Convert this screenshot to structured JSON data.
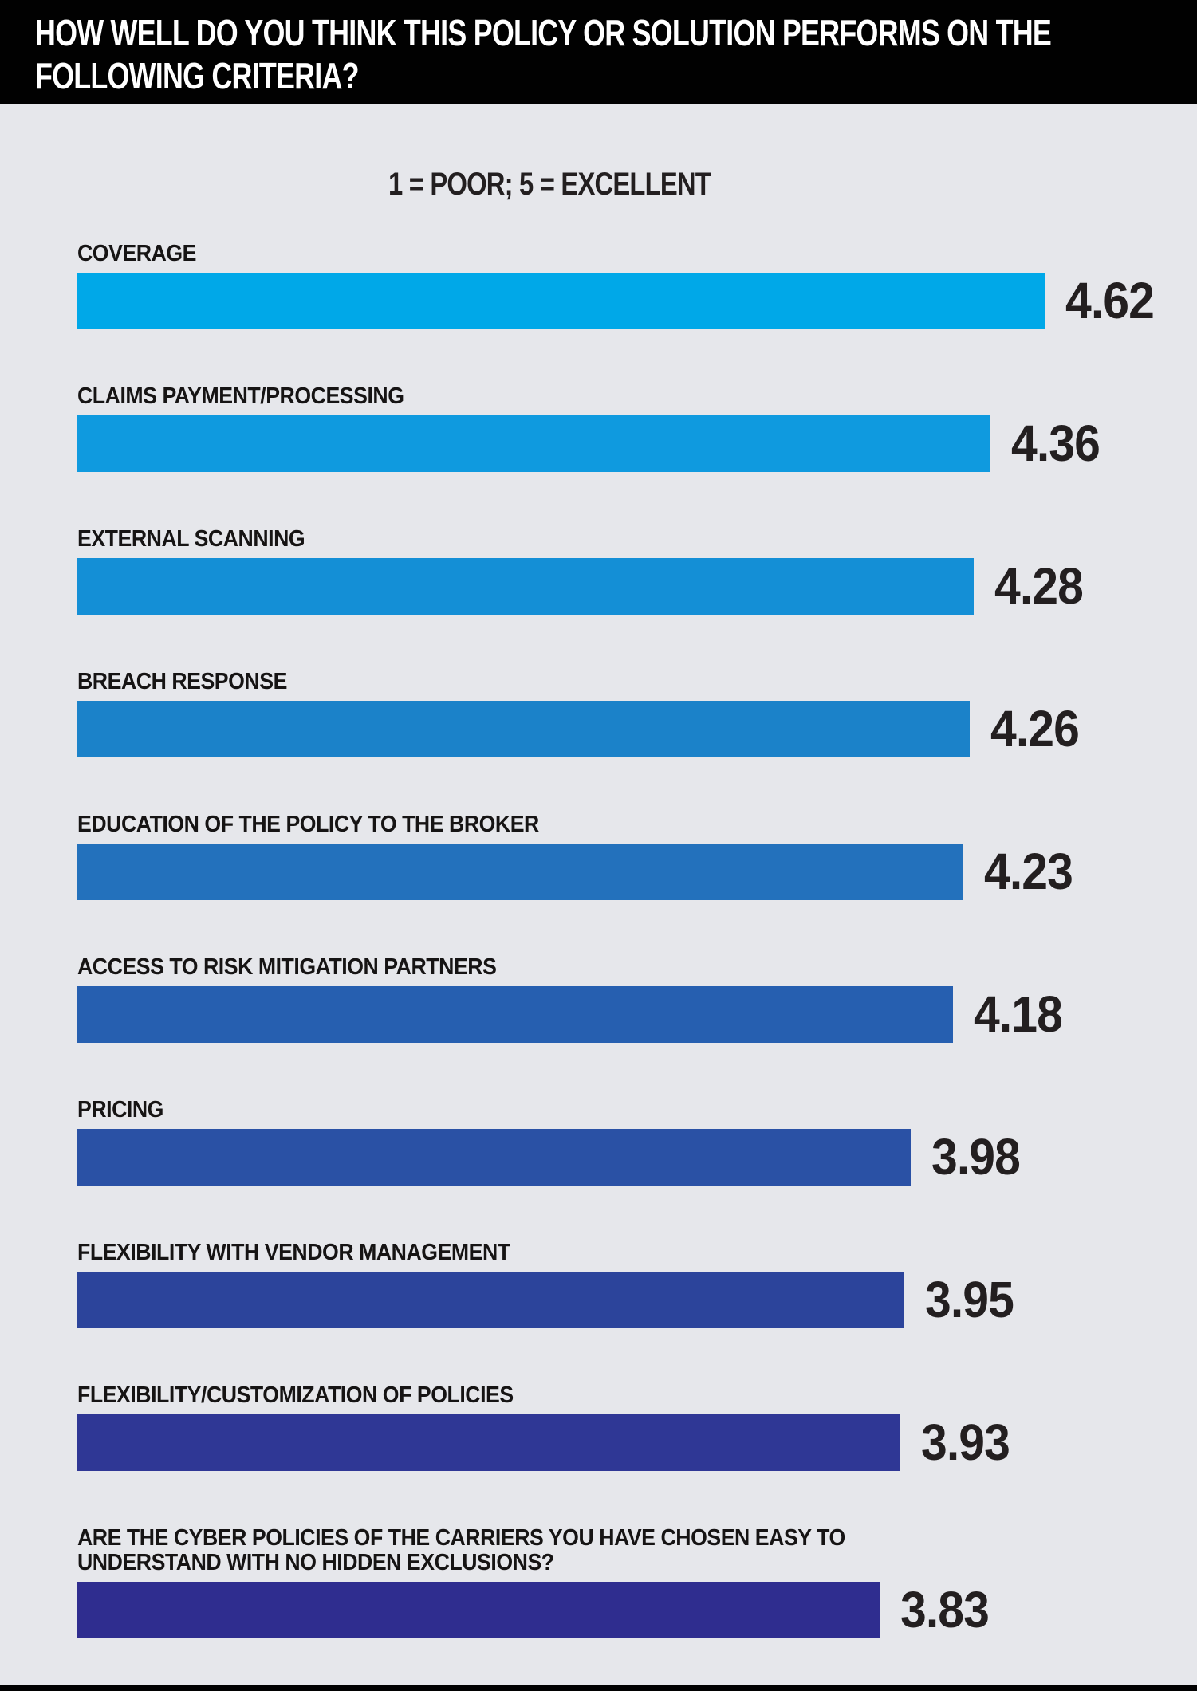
{
  "header": {
    "title_line1": "HOW WELL DO YOU THINK THIS POLICY OR SOLUTION PERFORMS ON THE",
    "title_line2": "FOLLOWING CRITERIA?"
  },
  "subtitle": "1 = POOR; 5 = EXCELLENT",
  "colors": {
    "header_background": "#010101",
    "page_background": "#e6e7eb",
    "text": "#231f20",
    "title_text": "#ffffff"
  },
  "chart_data": {
    "type": "bar",
    "orientation": "horizontal",
    "title": "HOW WELL DO YOU THINK THIS POLICY OR SOLUTION PERFORMS ON THE FOLLOWING CRITERIA?",
    "subtitle": "1 = POOR; 5 = EXCELLENT",
    "xlabel": "",
    "ylabel": "",
    "xlim": [
      0,
      5
    ],
    "grid": false,
    "legend": false,
    "value_labels_position": "right-of-bar",
    "categories": [
      "COVERAGE",
      "CLAIMS PAYMENT/PROCESSING",
      "EXTERNAL SCANNING",
      "BREACH RESPONSE",
      "EDUCATION OF THE POLICY TO THE BROKER",
      "ACCESS TO RISK MITIGATION PARTNERS",
      "PRICING",
      "FLEXIBILITY WITH VENDOR MANAGEMENT",
      "FLEXIBILITY/CUSTOMIZATION OF POLICIES",
      "ARE THE CYBER POLICIES OF THE CARRIERS YOU HAVE CHOSEN EASY TO UNDERSTAND WITH NO HIDDEN EXCLUSIONS?"
    ],
    "values": [
      4.62,
      4.36,
      4.28,
      4.26,
      4.23,
      4.18,
      3.98,
      3.95,
      3.93,
      3.83
    ],
    "value_labels": [
      "4.62",
      "4.36",
      "4.28",
      "4.26",
      "4.23",
      "4.18",
      "3.98",
      "3.95",
      "3.93",
      "3.83"
    ],
    "bar_colors": [
      "#00a8e8",
      "#0f9adf",
      "#148fd6",
      "#1b82c9",
      "#2371bc",
      "#265fb0",
      "#2a51a5",
      "#2c449b",
      "#2f3795",
      "#2f2d8f"
    ]
  }
}
